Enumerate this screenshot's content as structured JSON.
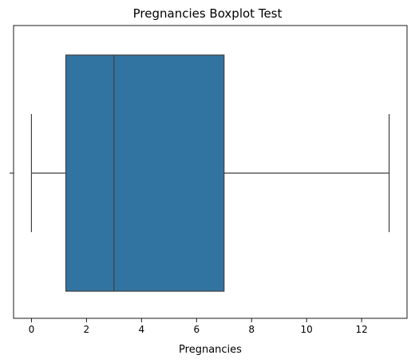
{
  "chart_data": {
    "type": "boxplot",
    "title": "Pregnancies Boxplot Test",
    "xlabel": "Pregnancies",
    "ylabel": "",
    "xlim": [
      -0.65,
      13.65
    ],
    "xticks": [
      0,
      2,
      4,
      6,
      8,
      10,
      12
    ],
    "orientation": "horizontal",
    "grid": false,
    "box": {
      "whisker_low": 0,
      "q1": 1.25,
      "median": 3,
      "q3": 7,
      "whisker_high": 13
    },
    "colors": {
      "box_fill": "#3274a1",
      "line": "#3f3f3f"
    }
  }
}
